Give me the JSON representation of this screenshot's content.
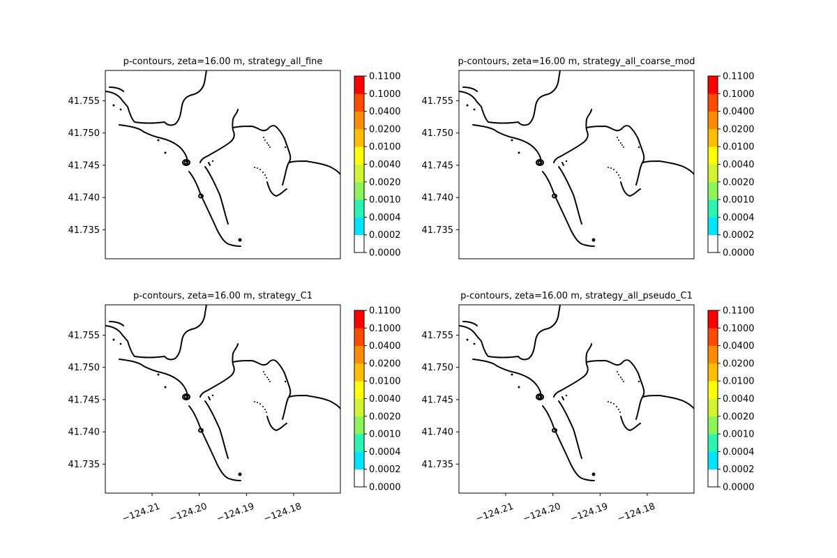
{
  "chart_data": [
    {
      "type": "contour",
      "title": "p-contours, zeta=16.00 m, strategy_all_fine",
      "x_ticks": [
        "−124.21",
        "−124.20",
        "−124.19",
        "−124.18"
      ],
      "x_tick_values": [
        -124.21,
        -124.2,
        -124.19,
        -124.18
      ],
      "y_ticks": [
        "41.735",
        "41.740",
        "41.745",
        "41.750",
        "41.755"
      ],
      "y_tick_values": [
        41.735,
        41.74,
        41.745,
        41.75,
        41.755
      ],
      "xlim": [
        -124.2199,
        -124.1701
      ],
      "ylim": [
        41.7305,
        41.7597
      ],
      "show_x_ticks": false,
      "colorbar": {
        "levels": [
          "0.0000",
          "0.0002",
          "0.0004",
          "0.0010",
          "0.0020",
          "0.0040",
          "0.0100",
          "0.0200",
          "0.0400",
          "0.1000",
          "0.1100"
        ],
        "colors": [
          "#ffffff",
          "#00e5ff",
          "#28f5b4",
          "#8cf55a",
          "#d2f532",
          "#ffff00",
          "#ffbe00",
          "#ff8c00",
          "#ff4b00",
          "#ff0000"
        ]
      }
    },
    {
      "type": "contour",
      "title": "p-contours, zeta=16.00 m, strategy_all_coarse_mod",
      "x_ticks": [
        "−124.21",
        "−124.20",
        "−124.19",
        "−124.18"
      ],
      "x_tick_values": [
        -124.21,
        -124.2,
        -124.19,
        -124.18
      ],
      "y_ticks": [
        "41.735",
        "41.740",
        "41.745",
        "41.750",
        "41.755"
      ],
      "y_tick_values": [
        41.735,
        41.74,
        41.745,
        41.75,
        41.755
      ],
      "xlim": [
        -124.2199,
        -124.1701
      ],
      "ylim": [
        41.7305,
        41.7597
      ],
      "show_x_ticks": false,
      "colorbar": {
        "levels": [
          "0.0000",
          "0.0002",
          "0.0004",
          "0.0010",
          "0.0020",
          "0.0040",
          "0.0100",
          "0.0200",
          "0.0400",
          "0.1000",
          "0.1100"
        ],
        "colors": [
          "#ffffff",
          "#00e5ff",
          "#28f5b4",
          "#8cf55a",
          "#d2f532",
          "#ffff00",
          "#ffbe00",
          "#ff8c00",
          "#ff4b00",
          "#ff0000"
        ]
      }
    },
    {
      "type": "contour",
      "title": "p-contours, zeta=16.00 m, strategy_C1",
      "x_ticks": [
        "−124.21",
        "−124.20",
        "−124.19",
        "−124.18"
      ],
      "x_tick_values": [
        -124.21,
        -124.2,
        -124.19,
        -124.18
      ],
      "y_ticks": [
        "41.735",
        "41.740",
        "41.745",
        "41.750",
        "41.755"
      ],
      "y_tick_values": [
        41.735,
        41.74,
        41.745,
        41.75,
        41.755
      ],
      "xlim": [
        -124.2199,
        -124.1701
      ],
      "ylim": [
        41.7305,
        41.7597
      ],
      "show_x_ticks": true,
      "colorbar": {
        "levels": [
          "0.0000",
          "0.0002",
          "0.0004",
          "0.0010",
          "0.0020",
          "0.0040",
          "0.0100",
          "0.0200",
          "0.0400",
          "0.1000",
          "0.1100"
        ],
        "colors": [
          "#ffffff",
          "#00e5ff",
          "#28f5b4",
          "#8cf55a",
          "#d2f532",
          "#ffff00",
          "#ffbe00",
          "#ff8c00",
          "#ff4b00",
          "#ff0000"
        ]
      }
    },
    {
      "type": "contour",
      "title": "p-contours, zeta=16.00 m, strategy_all_pseudo_C1",
      "x_ticks": [
        "−124.21",
        "−124.20",
        "−124.19",
        "−124.18"
      ],
      "x_tick_values": [
        -124.21,
        -124.2,
        -124.19,
        -124.18
      ],
      "y_ticks": [
        "41.735",
        "41.740",
        "41.745",
        "41.750",
        "41.755"
      ],
      "y_tick_values": [
        41.735,
        41.74,
        41.745,
        41.75,
        41.755
      ],
      "xlim": [
        -124.2199,
        -124.1701
      ],
      "ylim": [
        41.7305,
        41.7597
      ],
      "show_x_ticks": true,
      "colorbar": {
        "levels": [
          "0.0000",
          "0.0002",
          "0.0004",
          "0.0010",
          "0.0020",
          "0.0040",
          "0.0100",
          "0.0200",
          "0.0400",
          "0.1000",
          "0.1100"
        ],
        "colors": [
          "#ffffff",
          "#00e5ff",
          "#28f5b4",
          "#8cf55a",
          "#d2f532",
          "#ffff00",
          "#ffbe00",
          "#ff8c00",
          "#ff4b00",
          "#ff0000"
        ]
      }
    }
  ]
}
